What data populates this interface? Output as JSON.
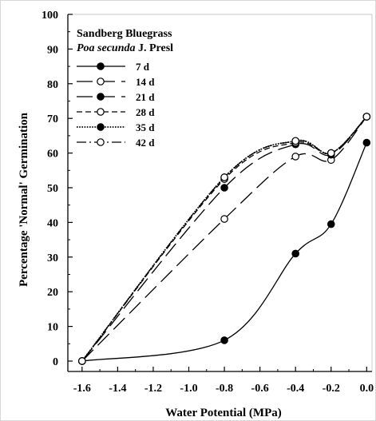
{
  "chart_data": {
    "type": "line",
    "title_line1": "Sandberg Bluegrass",
    "title_line2_italic": "Poa secunda",
    "title_line2_rest": " J. Presl",
    "xlabel": "Water Potential (MPa)",
    "ylabel": "Percentage 'Normal' Germination",
    "xlim": [
      -1.68,
      0.03
    ],
    "ylim": [
      -3,
      100
    ],
    "x_ticks": [
      -1.6,
      -1.4,
      -1.2,
      -1.0,
      -0.8,
      -0.6,
      -0.4,
      -0.2,
      0.0
    ],
    "x_tick_labels": [
      "-1.6",
      "-1.4",
      "-1.2",
      "-1.0",
      "-0.8",
      "-0.6",
      "-0.4",
      "-0.2",
      "0.0"
    ],
    "y_ticks": [
      0,
      10,
      20,
      30,
      40,
      50,
      60,
      70,
      80,
      90,
      100
    ],
    "y_tick_labels": [
      "0",
      "10",
      "20",
      "30",
      "40",
      "50",
      "60",
      "70",
      "80",
      "90",
      "100"
    ],
    "grid": false,
    "legend_placement": "top-left",
    "x": [
      -1.6,
      -0.8,
      -0.4,
      -0.2,
      0.0
    ],
    "series": [
      {
        "name": "7 d",
        "dash": "solid",
        "marker": "filled",
        "values": [
          0,
          6,
          31,
          39.5,
          63
        ]
      },
      {
        "name": "14 d",
        "dash": "longdash",
        "marker": "open",
        "values": [
          0,
          41,
          59,
          58,
          70.5
        ]
      },
      {
        "name": "21 d",
        "dash": "longdash",
        "marker": "filled",
        "values": [
          0,
          50,
          62.5,
          59.5,
          70.5
        ]
      },
      {
        "name": "28 d",
        "dash": "dash",
        "marker": "open",
        "values": [
          0,
          52.5,
          63,
          60,
          70.5
        ]
      },
      {
        "name": "35 d",
        "dash": "dot",
        "marker": "filled",
        "values": [
          0,
          53,
          63.5,
          60,
          70.5
        ]
      },
      {
        "name": "42 d",
        "dash": "dashdot",
        "marker": "open",
        "values": [
          0,
          53,
          63.5,
          60,
          70.5
        ]
      }
    ]
  }
}
